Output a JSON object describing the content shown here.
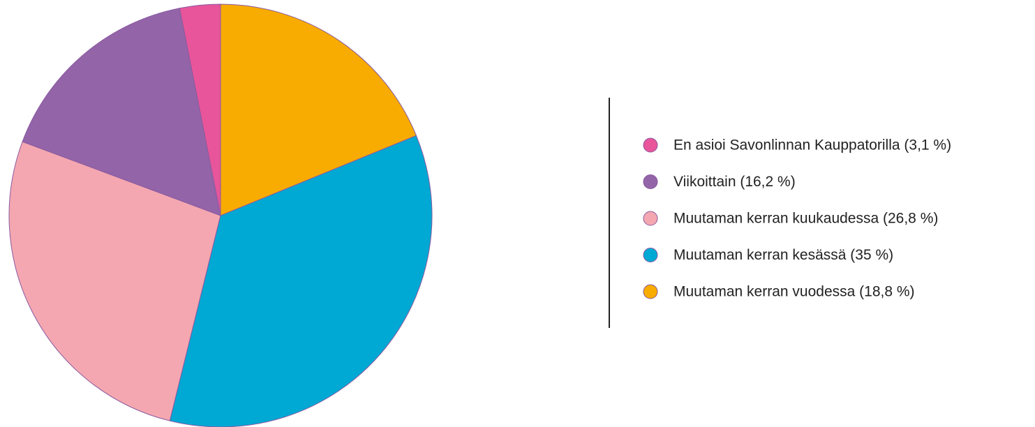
{
  "chart_data": {
    "type": "pie",
    "categories": [
      "En asioi Savonlinnan Kauppatorilla (3,1 %)",
      "Viikoittain (16,2 %)",
      "Muutaman kerran kuukaudessa (26,8 %)",
      "Muutaman kerran kesässä (35 %)",
      "Muutaman kerran vuodessa (18,8 %)"
    ],
    "values": [
      3.1,
      16.2,
      26.8,
      35,
      18.8
    ],
    "colors": [
      "#e8559a",
      "#9364a8",
      "#f4a7b0",
      "#00a8d4",
      "#f8ab00"
    ],
    "startangle": 90,
    "counterclock": true,
    "legend": "right"
  }
}
